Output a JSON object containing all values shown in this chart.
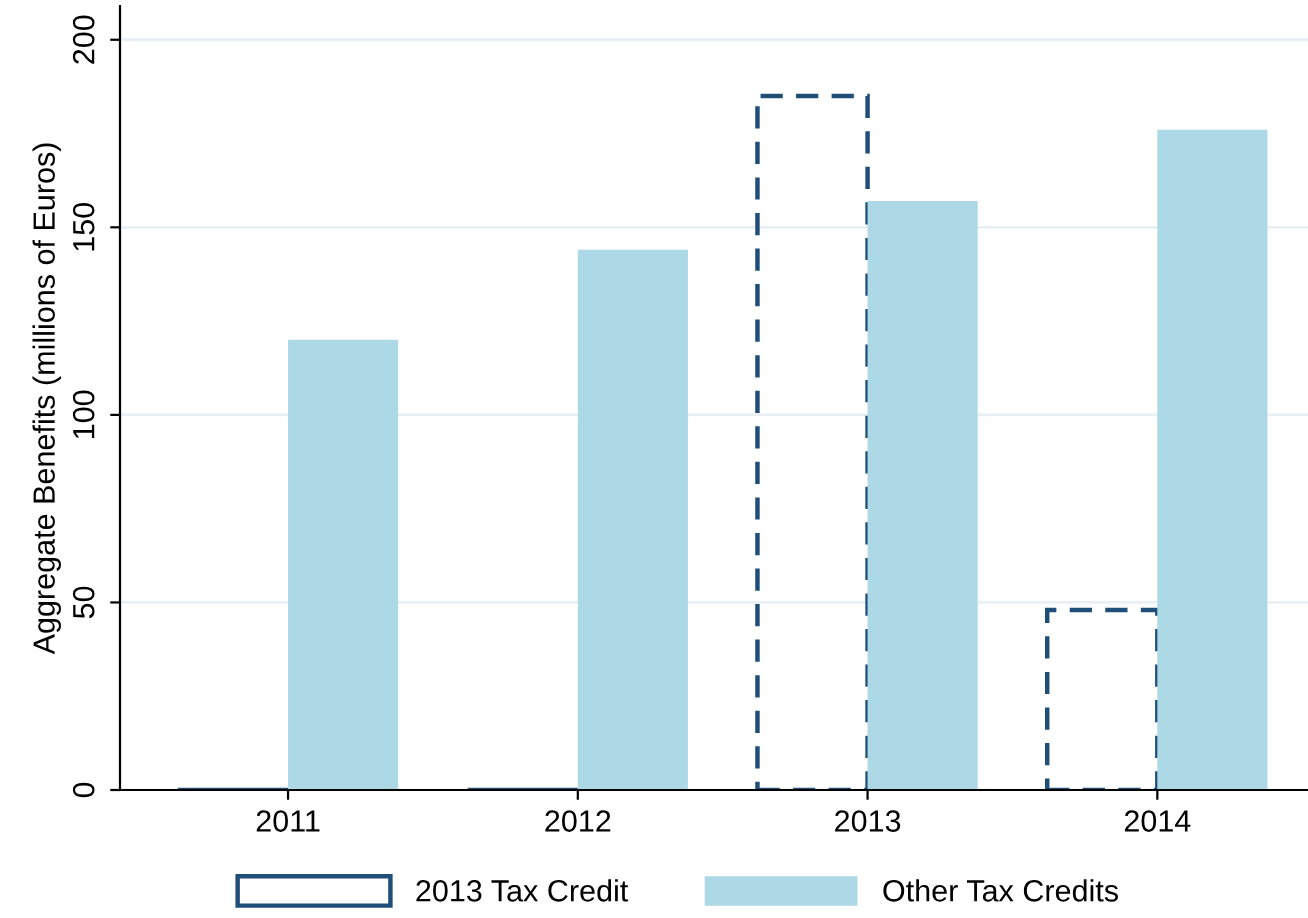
{
  "chart_data": {
    "type": "bar",
    "ylabel": "Aggregate Benefits (millions of Euros)",
    "categories": [
      "2011",
      "2012",
      "2013",
      "2014"
    ],
    "series": [
      {
        "name": "2013 Tax Credit",
        "color": "#1f4e79",
        "line_style": "dashed",
        "values": [
          0,
          0,
          185,
          48
        ]
      },
      {
        "name": "Other Tax Credits",
        "color": "#add8e6",
        "values": [
          120,
          144,
          157,
          176
        ]
      }
    ],
    "ylim": [
      0,
      209
    ],
    "yticks": [
      0,
      50,
      100,
      150,
      200
    ],
    "grid": "y",
    "legend": "bottom"
  }
}
